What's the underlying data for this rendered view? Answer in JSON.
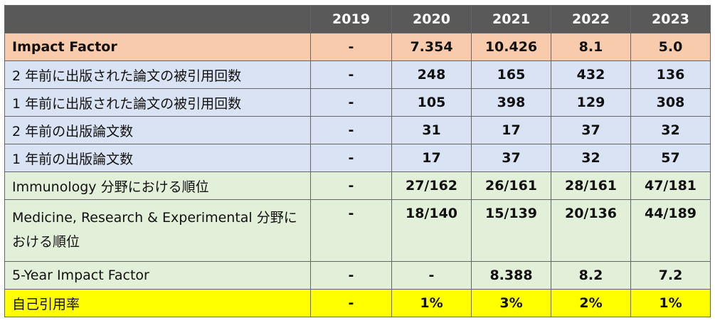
{
  "colors": {
    "header_bg": "#595959",
    "orange_bg": "#f8cbad",
    "blue_bg": "#dae3f3",
    "green_bg": "#e2efd9",
    "yellow_bg": "#ffff00"
  },
  "years": [
    "2019",
    "2020",
    "2021",
    "2022",
    "2023"
  ],
  "rows": [
    {
      "label": "Impact Factor",
      "tone": "orange",
      "bold": true,
      "values": [
        "-",
        "7.354",
        "10.426",
        "8.1",
        "5.0"
      ]
    },
    {
      "label": "2 年前に出版された論文の被引用回数",
      "tone": "blue",
      "bold": false,
      "values": [
        "-",
        "248",
        "165",
        "432",
        "136"
      ]
    },
    {
      "label": "1 年前に出版された論文の被引用回数",
      "tone": "blue",
      "bold": false,
      "values": [
        "-",
        "105",
        "398",
        "129",
        "308"
      ]
    },
    {
      "label": "2 年前の出版論文数",
      "tone": "blue",
      "bold": false,
      "values": [
        "-",
        "31",
        "17",
        "37",
        "32"
      ]
    },
    {
      "label": "1 年前の出版論文数",
      "tone": "blue",
      "bold": false,
      "values": [
        "-",
        "17",
        "37",
        "32",
        "57"
      ]
    },
    {
      "label": "Immunology 分野における順位",
      "tone": "green",
      "bold": false,
      "values": [
        "-",
        "27/162",
        "26/161",
        "28/161",
        "47/181"
      ]
    },
    {
      "label": "Medicine, Research & Experimental 分野における順位",
      "tone": "green",
      "bold": false,
      "values": [
        "-",
        "18/140",
        "15/139",
        "20/136",
        "44/189"
      ]
    },
    {
      "label": "5-Year Impact Factor",
      "tone": "green",
      "bold": false,
      "values": [
        "-",
        "-",
        "8.388",
        "8.2",
        "7.2"
      ]
    },
    {
      "label": "自己引用率",
      "tone": "yellow",
      "bold": false,
      "values": [
        "-",
        "1%",
        "3%",
        "2%",
        "1%"
      ]
    }
  ]
}
